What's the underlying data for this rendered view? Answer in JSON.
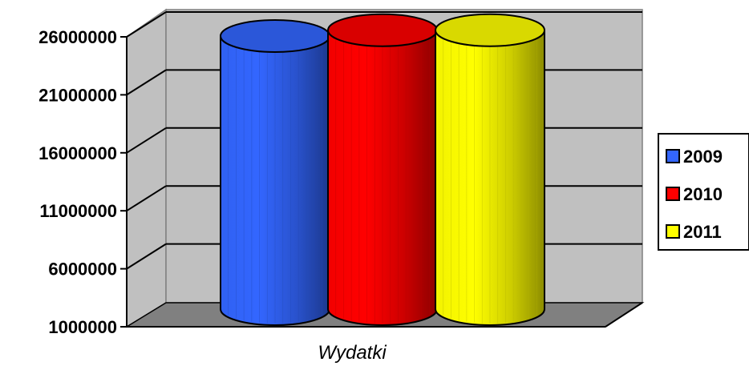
{
  "chart_data": {
    "type": "bar",
    "categories": [
      "Wydatki"
    ],
    "series": [
      {
        "name": "2009",
        "values": [
          25000000
        ],
        "color": "#3366FF"
      },
      {
        "name": "2010",
        "values": [
          25500000
        ],
        "color": "#FF0000"
      },
      {
        "name": "2011",
        "values": [
          25500000
        ],
        "color": "#FFFF00"
      }
    ],
    "yticks": [
      "1000000",
      "6000000",
      "11000000",
      "16000000",
      "21000000",
      "26000000"
    ],
    "ylim": [
      1000000,
      26000000
    ],
    "grid": true,
    "legend": "right",
    "style": "3d-cylinder"
  },
  "colors": {
    "wall": "#C0C0C0",
    "floor": "#808080"
  }
}
